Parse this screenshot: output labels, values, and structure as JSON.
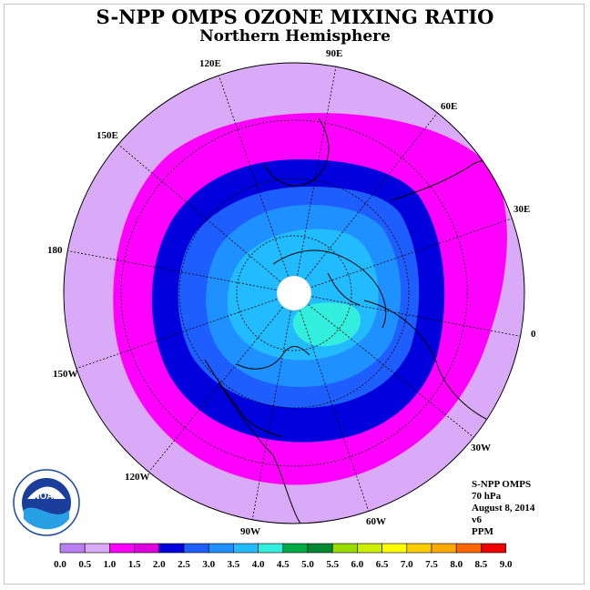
{
  "title": "S-NPP OMPS OZONE MIXING RATIO",
  "subtitle": "Northern Hemisphere",
  "longitude_labels": [
    "90E",
    "60E",
    "30E",
    "0",
    "30W",
    "60W",
    "90W",
    "120W",
    "150W",
    "180",
    "150E",
    "120E"
  ],
  "info": {
    "instrument": "S-NPP OMPS",
    "level": "70 hPa",
    "date": "August 8, 2014",
    "version": "v6",
    "units": "PPM"
  },
  "logo_text": "NOAA",
  "colorbar": {
    "ticks": [
      "0.0",
      "0.5",
      "1.0",
      "1.5",
      "2.0",
      "2.5",
      "3.0",
      "3.5",
      "4.0",
      "4.5",
      "5.0",
      "5.5",
      "6.0",
      "6.5",
      "7.0",
      "7.5",
      "8.0",
      "8.5",
      "9.0"
    ],
    "colors": [
      "#b87ff0",
      "#d9aaf7",
      "#ff00ff",
      "#dd00dd",
      "#0000dd",
      "#1e5eff",
      "#1e90ff",
      "#22bbff",
      "#33eedd",
      "#00aa44",
      "#008833",
      "#99dd00",
      "#ccee00",
      "#ffff00",
      "#ffcc00",
      "#ffaa00",
      "#ff6600",
      "#ee0000",
      "#884422"
    ]
  },
  "colors": {
    "outer": "#d9aaf7",
    "band_1_0": "#ff00ff",
    "band_1_5": "#0000dd",
    "band_2_0": "#1e5eff",
    "band_2_5": "#1e90ff",
    "band_3_0": "#22bbff",
    "band_3_5": "#33eedd"
  }
}
